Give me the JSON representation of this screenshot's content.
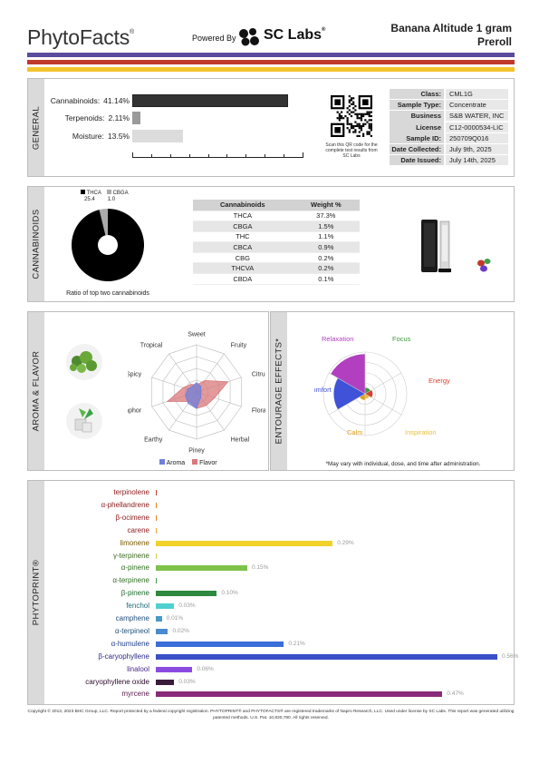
{
  "header": {
    "brand": "PhytoFacts",
    "powered_by": "Powered By",
    "sc_labs": "SC Labs",
    "product_line1": "Banana Altitude 1 gram",
    "product_line2": "Preroll"
  },
  "colors": {
    "stripe_purple": "#5b4a9e",
    "stripe_red": "#c0392b",
    "stripe_yellow": "#f3c32d",
    "aroma": "#6f7fd9",
    "flavor": "#d9787a",
    "relaxation": "#b13fc0",
    "comfort": "#3f52d8",
    "energy": "#d8402f",
    "focus": "#3f9a3f",
    "calm": "#e0a020",
    "inspiration": "#e8c040"
  },
  "general": {
    "title": "GENERAL",
    "rows": [
      {
        "label": "Cannabinoids:",
        "value": "41.14%",
        "pct": 41.14,
        "color": "#333333"
      },
      {
        "label": "Terpenoids:",
        "value": "2.11%",
        "pct": 2.11,
        "color": "#9a9a9a"
      },
      {
        "label": "Moisture:",
        "value": "13.5%",
        "pct": 13.5,
        "color": "#dcdcdc"
      }
    ],
    "qr_caption": "Scan this QR code for the complete test results from SC Labs",
    "info": [
      {
        "key": "Class:",
        "value": "CML1G"
      },
      {
        "key": "Sample Type:",
        "value": "Concentrate"
      },
      {
        "key": "Business Name:",
        "value": "S&B WATER, INC"
      },
      {
        "key": "License Number:",
        "value": "C12-0000534-LIC"
      },
      {
        "key": "Sample ID:",
        "value": "250709Q016"
      },
      {
        "key": "Date Collected:",
        "value": "July 9th, 2025"
      },
      {
        "key": "Date Issued:",
        "value": "July 14th, 2025"
      }
    ]
  },
  "cannabinoids": {
    "title": "CANNABINOIDS",
    "legend": [
      {
        "name": "THCA",
        "value": "25.4",
        "color": "#000000"
      },
      {
        "name": "CBGA",
        "value": "1.0",
        "color": "#aaaaaa"
      }
    ],
    "caption": "Ratio of top two cannabinoids",
    "table_header": [
      "Cannabinoids",
      "Weight %"
    ],
    "table_rows": [
      [
        "THCA",
        "37.3%"
      ],
      [
        "CBGA",
        "1.5%"
      ],
      [
        "THC",
        "1.1%"
      ],
      [
        "CBCA",
        "0.9%"
      ],
      [
        "CBG",
        "0.2%"
      ],
      [
        "THCVA",
        "0.2%"
      ],
      [
        "CBDA",
        "0.1%"
      ]
    ]
  },
  "aroma": {
    "title": "AROMA & FLAVOR",
    "axes": [
      "Sweet",
      "Fruity",
      "Citrusy",
      "Floral",
      "Herbal",
      "Piney",
      "Earthy",
      "Camphor",
      "Spicy",
      "Tropical"
    ],
    "aroma_values": [
      0.2,
      0.15,
      0.1,
      0.1,
      0.15,
      0.35,
      0.3,
      0.25,
      0.2,
      0.15
    ],
    "flavor_values": [
      0.15,
      0.3,
      0.7,
      0.4,
      0.35,
      0.35,
      0.25,
      0.65,
      0.3,
      0.2
    ],
    "legend_aroma": "Aroma",
    "legend_flavor": "Flavor"
  },
  "entourage": {
    "title": "ENTOURAGE EFFECTS*",
    "labels": [
      "Relaxation",
      "Focus",
      "Energy",
      "Inspiration",
      "Calm",
      "Comfort"
    ],
    "note": "*May vary with individual, dose, and time after administration."
  },
  "phytoprint": {
    "title": "PHYTOPRINT®",
    "items": [
      {
        "name": "terpinolene",
        "value": "",
        "pct": 0.0,
        "color": "#c0392b",
        "label_color": "#8b1a1a"
      },
      {
        "name": "α-phellandrene",
        "value": "",
        "pct": 0.0,
        "color": "#e67e22",
        "label_color": "#8b1a1a"
      },
      {
        "name": "β-ocimene",
        "value": "",
        "pct": 0.0,
        "color": "#e67e22",
        "label_color": "#8b1a1a"
      },
      {
        "name": "carene",
        "value": "",
        "pct": 0.0,
        "color": "#e8a33a",
        "label_color": "#8b1a1a"
      },
      {
        "name": "limonene",
        "value": "0.29%",
        "pct": 0.29,
        "color": "#f0d22a",
        "label_color": "#7a5a00"
      },
      {
        "name": "γ-terpinene",
        "value": "",
        "pct": 0.0,
        "color": "#c8d84a",
        "label_color": "#3e6b1f"
      },
      {
        "name": "α-pinene",
        "value": "0.15%",
        "pct": 0.15,
        "color": "#7dc24a",
        "label_color": "#2f6e1f"
      },
      {
        "name": "α-terpinene",
        "value": "",
        "pct": 0.0,
        "color": "#3d9a4a",
        "label_color": "#2f6e1f"
      },
      {
        "name": "β-pinene",
        "value": "0.10%",
        "pct": 0.1,
        "color": "#2d8a3e",
        "label_color": "#1e6b2e"
      },
      {
        "name": "fenchol",
        "value": "0.03%",
        "pct": 0.03,
        "color": "#4fd0d0",
        "label_color": "#1f6a7a"
      },
      {
        "name": "camphene",
        "value": "0.01%",
        "pct": 0.01,
        "color": "#4a9ac8",
        "label_color": "#1f4f7a"
      },
      {
        "name": "α-terpineol",
        "value": "0.02%",
        "pct": 0.02,
        "color": "#4a8ad0",
        "label_color": "#1f4f7a"
      },
      {
        "name": "α-humulene",
        "value": "0.21%",
        "pct": 0.21,
        "color": "#3a6ed8",
        "label_color": "#1f3f8a"
      },
      {
        "name": "β-caryophyllene",
        "value": "0.56%",
        "pct": 0.56,
        "color": "#3a4fc8",
        "label_color": "#2a2a8a"
      },
      {
        "name": "linalool",
        "value": "0.06%",
        "pct": 0.06,
        "color": "#8a4ae0",
        "label_color": "#4a2a8a"
      },
      {
        "name": "caryophyllene oxide",
        "value": "0.03%",
        "pct": 0.03,
        "color": "#3a1a3a",
        "label_color": "#2a0a2a"
      },
      {
        "name": "myrcene",
        "value": "0.47%",
        "pct": 0.47,
        "color": "#8a2a7a",
        "label_color": "#5a1a4a"
      }
    ]
  },
  "footer": "Copyright © 2013, 2023 BHC Group, LLC. Report protected by a federal copyright registration. PHYTOPRINT® and PHYTOFACTS® are registered trademarks of Napro Research, LLC. Used under license by SC Labs. This report was generated utilizing patented methods. U.S. Pat. 10,830,780. All rights reserved."
}
